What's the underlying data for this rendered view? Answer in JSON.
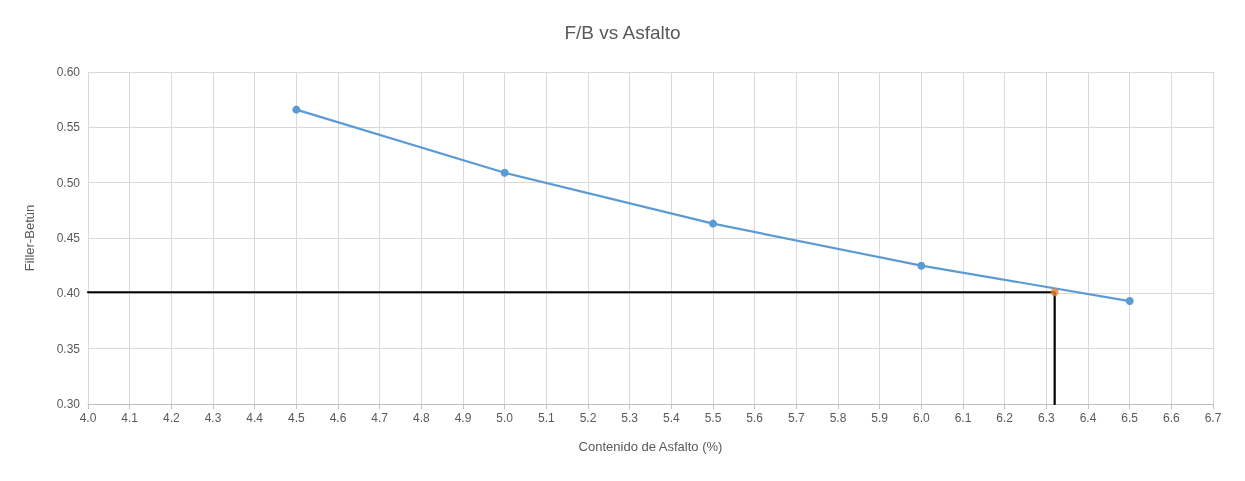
{
  "chart_data": {
    "type": "line",
    "title": "F/B vs Asfalto",
    "xlabel": "Contenido de Asfalto (%)",
    "ylabel": "Filler-Betún",
    "series": [
      {
        "color": "#000000",
        "marker": "none",
        "x": [
          4.0,
          6.32,
          6.32
        ],
        "values": [
          0.401,
          0.401,
          0.3
        ]
      },
      {
        "color": "#5b9bd5",
        "marker": "circle",
        "x": [
          4.5,
          5.0,
          5.5,
          6.0,
          6.5
        ],
        "values": [
          0.566,
          0.509,
          0.463,
          0.425,
          0.393
        ]
      },
      {
        "type": "scatter",
        "color": "#ed7d31",
        "marker": "circle",
        "x": [
          6.32
        ],
        "values": [
          0.401
        ]
      }
    ],
    "xlim": [
      4.0,
      6.7
    ],
    "xticks": [
      {
        "value": 4.0,
        "label": "4.0"
      },
      {
        "value": 4.1,
        "label": "4.1"
      },
      {
        "value": 4.2,
        "label": "4.2"
      },
      {
        "value": 4.3,
        "label": "4.3"
      },
      {
        "value": 4.4,
        "label": "4.4"
      },
      {
        "value": 4.5,
        "label": "4.5"
      },
      {
        "value": 4.6,
        "label": "4.6"
      },
      {
        "value": 4.7,
        "label": "4.7"
      },
      {
        "value": 4.8,
        "label": "4.8"
      },
      {
        "value": 4.9,
        "label": "4.9"
      },
      {
        "value": 5.0,
        "label": "5.0"
      },
      {
        "value": 5.1,
        "label": "5.1"
      },
      {
        "value": 5.2,
        "label": "5.2"
      },
      {
        "value": 5.3,
        "label": "5.3"
      },
      {
        "value": 5.4,
        "label": "5.4"
      },
      {
        "value": 5.5,
        "label": "5.5"
      },
      {
        "value": 5.6,
        "label": "5.6"
      },
      {
        "value": 5.7,
        "label": "5.7"
      },
      {
        "value": 5.8,
        "label": "5.8"
      },
      {
        "value": 5.9,
        "label": "5.9"
      },
      {
        "value": 6.0,
        "label": "6.0"
      },
      {
        "value": 6.1,
        "label": "6.1"
      },
      {
        "value": 6.2,
        "label": "6.2"
      },
      {
        "value": 6.3,
        "label": "6.3"
      },
      {
        "value": 6.4,
        "label": "6.4"
      },
      {
        "value": 6.5,
        "label": "6.5"
      },
      {
        "value": 6.6,
        "label": "6.6"
      },
      {
        "value": 6.7,
        "label": "6.7"
      }
    ],
    "ylim": [
      0.3,
      0.6
    ],
    "yticks": [
      {
        "value": 0.3,
        "label": "0.30"
      },
      {
        "value": 0.35,
        "label": "0.35"
      },
      {
        "value": 0.4,
        "label": "0.40"
      },
      {
        "value": 0.45,
        "label": "0.45"
      },
      {
        "value": 0.5,
        "label": "0.50"
      },
      {
        "value": 0.55,
        "label": "0.55"
      },
      {
        "value": 0.6,
        "label": "0.60"
      }
    ],
    "grid": true
  }
}
